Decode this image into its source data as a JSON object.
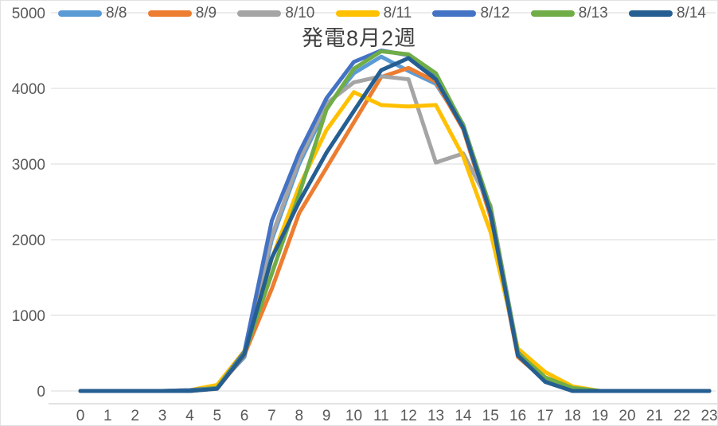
{
  "chart_data": {
    "type": "line",
    "title": "発電8月2週",
    "xlabel": "",
    "ylabel": "",
    "ylim": [
      0,
      5000
    ],
    "grid": true,
    "legend_position": "top",
    "x": [
      0,
      1,
      2,
      3,
      4,
      5,
      6,
      7,
      8,
      9,
      10,
      11,
      12,
      13,
      14,
      15,
      16,
      17,
      18,
      19,
      20,
      21,
      22,
      23
    ],
    "x_tick_labels": [
      "0",
      "1",
      "2",
      "3",
      "4",
      "5",
      "6",
      "7",
      "8",
      "9",
      "10",
      "11",
      "12",
      "13",
      "14",
      "15",
      "16",
      "17",
      "18",
      "19",
      "20",
      "21",
      "22",
      "23"
    ],
    "y_tick_labels": [
      "0",
      "1000",
      "2000",
      "3000",
      "4000",
      "5000"
    ],
    "y_tick_values": [
      0,
      1000,
      2000,
      3000,
      4000,
      5000
    ],
    "series": [
      {
        "name": "8/8",
        "color": "#5B9BD5",
        "values": [
          0,
          0,
          0,
          0,
          10,
          60,
          450,
          2000,
          3000,
          3750,
          4200,
          4420,
          4230,
          4060,
          3500,
          2400,
          490,
          160,
          10,
          0,
          0,
          0,
          0,
          0
        ]
      },
      {
        "name": "8/9",
        "color": "#ED7D31",
        "values": [
          0,
          0,
          0,
          0,
          0,
          30,
          480,
          1350,
          2350,
          2950,
          3550,
          4150,
          4270,
          4090,
          3460,
          2300,
          450,
          140,
          0,
          0,
          0,
          0,
          0,
          0
        ]
      },
      {
        "name": "8/10",
        "color": "#A5A5A5",
        "values": [
          0,
          0,
          0,
          0,
          0,
          40,
          500,
          2050,
          3050,
          3800,
          4080,
          4160,
          4120,
          3020,
          3140,
          2450,
          520,
          170,
          0,
          0,
          0,
          0,
          0,
          0
        ]
      },
      {
        "name": "8/11",
        "color": "#FFC000",
        "values": [
          0,
          0,
          0,
          0,
          10,
          80,
          530,
          1750,
          2700,
          3450,
          3950,
          3780,
          3760,
          3780,
          3100,
          2100,
          560,
          250,
          60,
          0,
          0,
          0,
          0,
          0
        ]
      },
      {
        "name": "8/12",
        "color": "#4472C4",
        "values": [
          0,
          0,
          0,
          0,
          10,
          40,
          520,
          2250,
          3150,
          3870,
          4350,
          4500,
          4440,
          4150,
          3520,
          2400,
          510,
          150,
          10,
          0,
          0,
          0,
          0,
          0
        ]
      },
      {
        "name": "8/13",
        "color": "#70AD47",
        "values": [
          0,
          0,
          0,
          0,
          0,
          40,
          500,
          1550,
          2600,
          3720,
          4260,
          4490,
          4450,
          4200,
          3510,
          2420,
          500,
          180,
          40,
          0,
          0,
          0,
          0,
          0
        ]
      },
      {
        "name": "8/14",
        "color": "#255E91",
        "values": [
          0,
          0,
          0,
          0,
          0,
          30,
          490,
          1760,
          2500,
          3150,
          3700,
          4240,
          4400,
          4120,
          3480,
          2350,
          470,
          120,
          0,
          0,
          0,
          0,
          0,
          0
        ]
      }
    ]
  }
}
